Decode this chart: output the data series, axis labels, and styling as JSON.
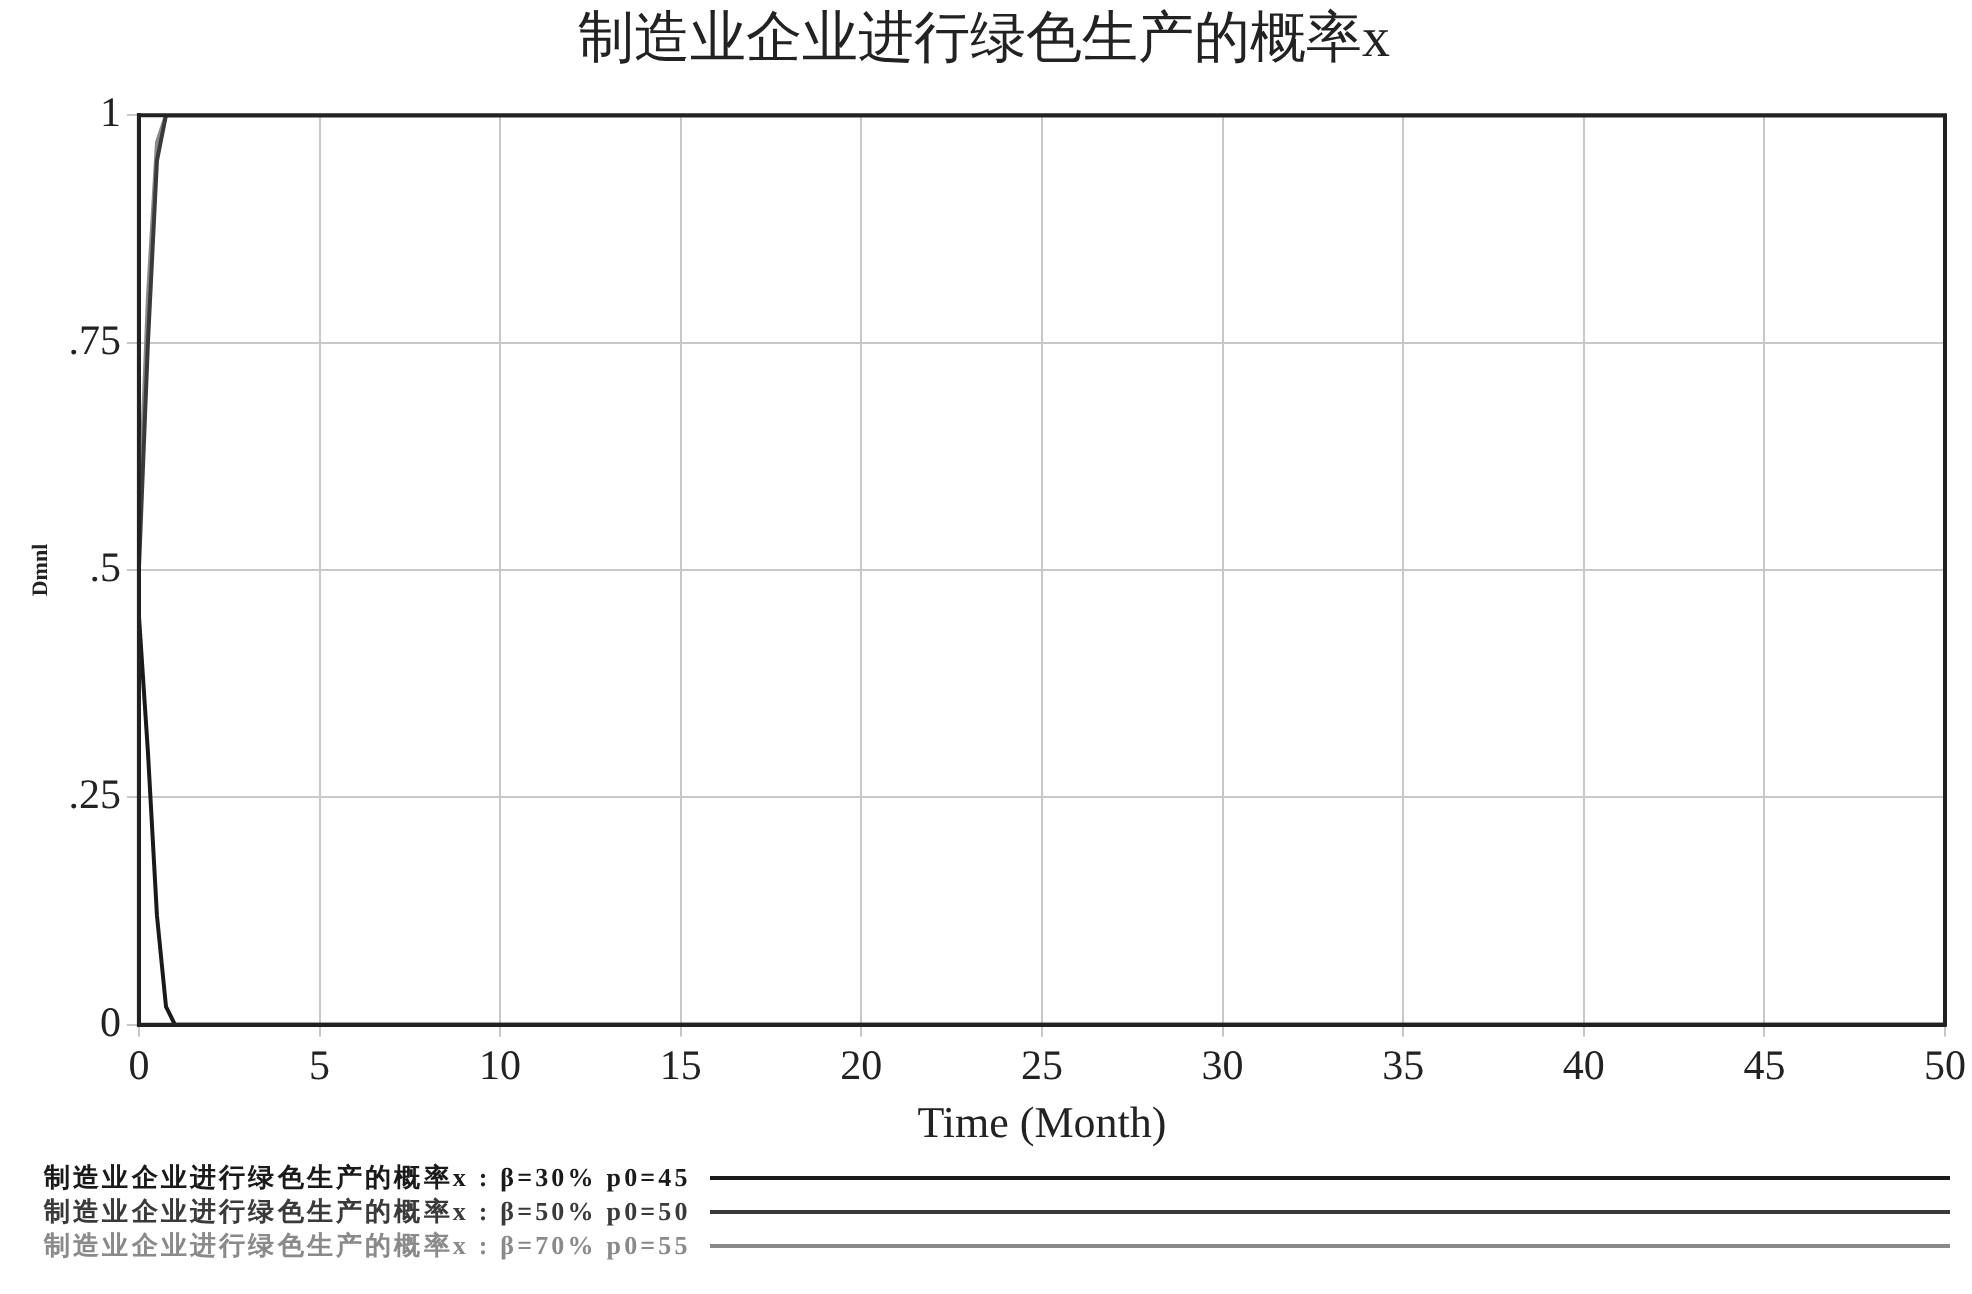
{
  "chart_data": {
    "type": "line",
    "title": "制造业企业进行绿色生产的概率x",
    "xlabel": "Time (Month)",
    "ylabel": "Dmnl",
    "x": [
      0,
      0.25,
      0.5,
      0.75,
      1,
      50
    ],
    "series": [
      {
        "name": "制造业企业进行绿色生产的概率x : β=30%  p0=45",
        "color": "#1a1a1a",
        "values": [
          0.45,
          0.3,
          0.12,
          0.02,
          0,
          0
        ]
      },
      {
        "name": "制造业企业进行绿色生产的概率x : β=50%  p0=50",
        "color": "#3a3a3a",
        "values": [
          0.5,
          0.75,
          0.95,
          1,
          1,
          1
        ]
      },
      {
        "name": "制造业企业进行绿色生产的概率x : β=70%  p0=55",
        "color": "#8a8a8a",
        "values": [
          0.55,
          0.8,
          0.97,
          1,
          1,
          1
        ]
      }
    ],
    "xlim": [
      0,
      50
    ],
    "xticks": [
      0,
      5,
      10,
      15,
      20,
      25,
      30,
      35,
      40,
      45,
      50
    ],
    "ylim": [
      0,
      1
    ],
    "yticks": [
      0,
      {
        "value": 0.25,
        "label": ".25"
      },
      {
        "value": 0.5,
        "label": ".5"
      },
      {
        "value": 0.75,
        "label": ".75"
      },
      1
    ],
    "grid": true,
    "legend": "bottom",
    "marker": "none",
    "line_style": "solid"
  }
}
